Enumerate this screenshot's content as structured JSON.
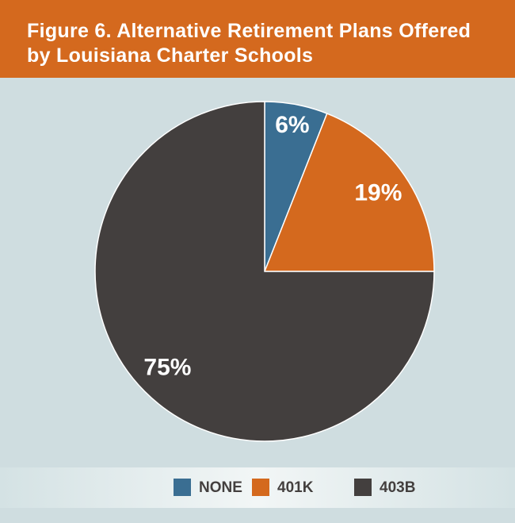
{
  "chart_data": {
    "type": "pie",
    "title": "Figure 6. Alternative Retirement Plans Offered by Louisiana Charter Schools",
    "categories": [
      "NONE",
      "401K",
      "403B"
    ],
    "values": [
      6,
      19,
      75
    ],
    "value_labels": [
      "6%",
      "19%",
      "75%"
    ],
    "colors": [
      "#3a6e92",
      "#d4691e",
      "#433f3e"
    ],
    "legend": "bottom"
  }
}
